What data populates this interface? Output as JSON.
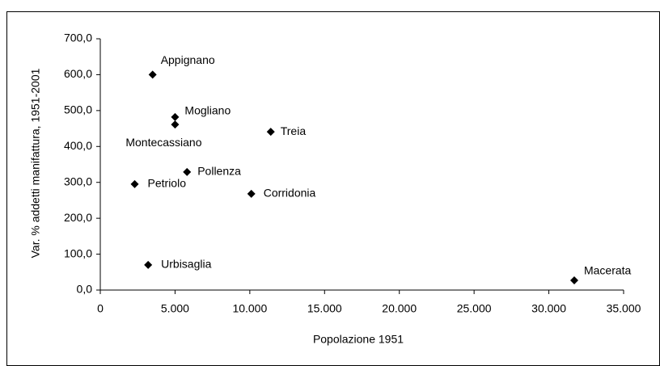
{
  "chart_data": {
    "type": "scatter",
    "x_label": "Popolazione 1951",
    "y_label": "Var. % addetti manifattura, 1951-2001",
    "labels": [
      "Appignano",
      "Mogliano",
      "Montecassiano",
      "Treia",
      "Pollenza",
      "Petriolo",
      "Corridonia",
      "Urbisaglia",
      "Macerata"
    ],
    "x": [
      3500,
      5000,
      5000,
      11400,
      5800,
      2300,
      10100,
      3200,
      31700
    ],
    "values": [
      600,
      482,
      461,
      441,
      329,
      295,
      268,
      70,
      27
    ],
    "color": "#000000",
    "xlim": [
      0,
      35000
    ],
    "xticks": [
      0,
      {
        "value": 5000,
        "label": "5.000"
      },
      {
        "value": 10000,
        "label": "10.000"
      },
      {
        "value": 15000,
        "label": "15.000"
      },
      {
        "value": 20000,
        "label": "20.000"
      },
      {
        "value": 25000,
        "label": "25.000"
      },
      {
        "value": 30000,
        "label": "30.000"
      },
      {
        "value": 35000,
        "label": "35.000"
      }
    ],
    "ylim": [
      0,
      700
    ],
    "yticks": [
      {
        "value": 0,
        "label": "0,0"
      },
      {
        "value": 100,
        "label": "100,0"
      },
      {
        "value": 200,
        "label": "200,0"
      },
      {
        "value": 300,
        "label": "300,0"
      },
      {
        "value": 400,
        "label": "400,0"
      },
      {
        "value": 500,
        "label": "500,0"
      },
      {
        "value": 600,
        "label": "600,0"
      },
      {
        "value": 700,
        "label": "700,0"
      }
    ],
    "grid": false
  }
}
